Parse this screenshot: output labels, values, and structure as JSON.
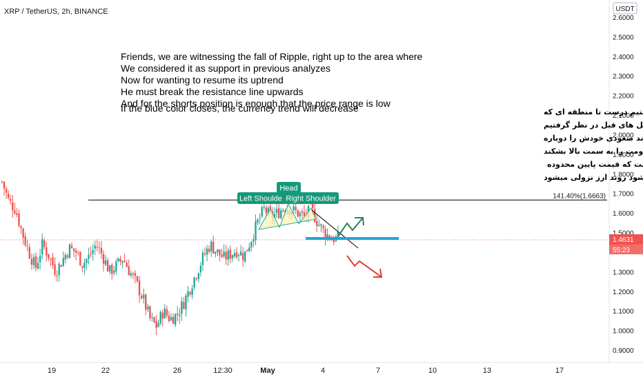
{
  "header": {
    "symbol": "XRP / TetherUS, 2h, BINANCE",
    "currency": "USDT"
  },
  "colors": {
    "up": "#26a69a",
    "down": "#ef5350",
    "blue": "#2a9fd6",
    "green_arrow": "#2e7d5b",
    "red_arrow": "#e53935",
    "price_tag": "#ef5350",
    "label_bg": "#16987b"
  },
  "chart_data": {
    "type": "candlestick",
    "ylim": [
      0.88,
      2.64
    ],
    "yticks": [
      "2.6000",
      "2.5000",
      "2.4000",
      "2.3000",
      "2.2000",
      "2.1000",
      "2.0000",
      "1.9000",
      "1.8000",
      "1.7000",
      "1.6000",
      "1.5000",
      "1.3000",
      "1.2000",
      "1.1000",
      "1.0000",
      "0.9000"
    ],
    "xticks": [
      "19",
      "22",
      "26",
      "12:30",
      "May",
      "4",
      "7",
      "10",
      "13",
      "17"
    ],
    "close_path": [
      1.76,
      1.66,
      1.62,
      1.5,
      1.4,
      1.32,
      1.44,
      1.38,
      1.3,
      1.36,
      1.42,
      1.4,
      1.34,
      1.38,
      1.44,
      1.38,
      1.3,
      1.33,
      1.37,
      1.3,
      1.24,
      1.16,
      1.06,
      1.02,
      1.1,
      1.06,
      1.08,
      1.14,
      1.22,
      1.3,
      1.38,
      1.44,
      1.4,
      1.37,
      1.39,
      1.41,
      1.38,
      1.46,
      1.55,
      1.62,
      1.58,
      1.6,
      1.63,
      1.62,
      1.6,
      1.58,
      1.62,
      1.55,
      1.5,
      1.47,
      1.47
    ],
    "fib_label": "141.40%(1.6663)",
    "fib_level": 1.6663,
    "current_price": "1.4631",
    "countdown": "55:23",
    "pattern_labels": {
      "head": "Head",
      "left_shoulder": "Left Shoulde",
      "right_shoulder": "Right Shoulder"
    },
    "support_level": 1.47
  },
  "notes": {
    "english": [
      "Friends, we are witnessing the fall of Ripple, right up to the area where",
      "We considered it as support in previous analyzes",
      "Now for wanting to resume its uptrend",
      "He must break the resistance line upwards",
      "And for the shorts position is enough that the price range is low",
      "If the blue color closes, the currency trend will decrease"
    ],
    "persian": [
      "دوستان شاهد ریزش ریپل هستیم درست تا منطقه ای که",
      "به عنوان حمایت در تحلیل های قبل در نظر گرفتیم",
      "الان برای اینکه بخواهد روند صعودی خودش را دوباره",
      "به دست بگیرد باید خط مقاومت را به سمت بالا بشکند",
      "و برای پوزیشن شورت کافی است که قیمت پایین محدوده",
      "ابی رنگ بسته بشود  روند ارز نزولی میشود"
    ]
  }
}
